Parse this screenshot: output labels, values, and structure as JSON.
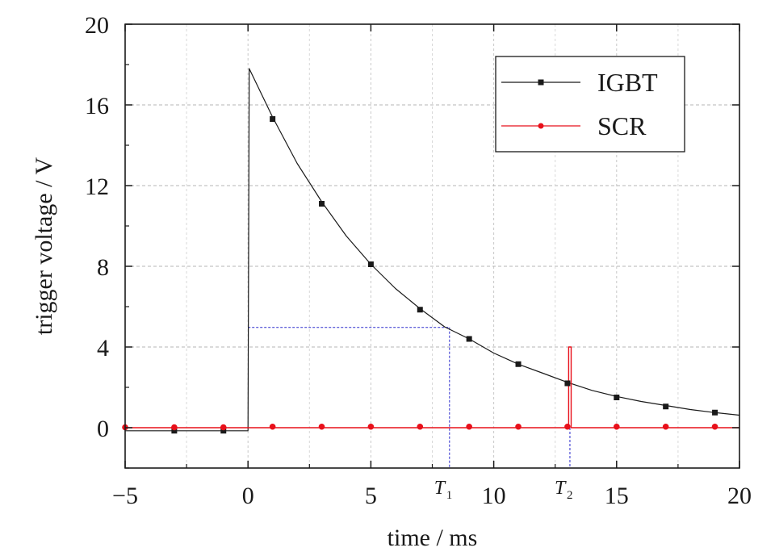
{
  "chart_data": {
    "type": "line",
    "xlabel": "time / ms",
    "ylabel": "trigger voltage / V",
    "xlim": [
      -5,
      20
    ],
    "ylim": [
      -2,
      20
    ],
    "xticks": [
      -5,
      0,
      5,
      10,
      15,
      20
    ],
    "xtick_labels": [
      "−5",
      "0",
      "5",
      "10",
      "15",
      "20"
    ],
    "yticks": [
      0,
      4,
      8,
      12,
      16,
      20
    ],
    "ytick_labels": [
      "0",
      "4",
      "8",
      "12",
      "16",
      "20"
    ],
    "grid": true,
    "legend_position": "top-right",
    "series": [
      {
        "name": "IGBT",
        "color": "#1a1a1a",
        "marker": "square",
        "line_x": [
          -5,
          -0.02,
          0,
          0.05,
          1,
          2,
          3,
          4,
          5,
          6,
          7,
          8,
          9,
          10,
          11,
          12,
          13,
          14,
          15,
          16,
          17,
          18,
          19,
          20
        ],
        "line_y": [
          -0.15,
          -0.15,
          -0.15,
          17.8,
          15.4,
          13.1,
          11.2,
          9.5,
          8.1,
          6.9,
          5.9,
          5.0,
          4.4,
          3.7,
          3.15,
          2.7,
          2.25,
          1.85,
          1.55,
          1.3,
          1.1,
          0.9,
          0.75,
          0.62
        ],
        "marker_x": [
          -3,
          -1,
          1,
          3,
          5,
          7,
          9,
          11,
          13,
          15,
          17,
          19
        ],
        "marker_y": [
          -0.15,
          -0.15,
          15.3,
          11.1,
          8.1,
          5.85,
          4.4,
          3.15,
          2.2,
          1.5,
          1.05,
          0.75
        ]
      },
      {
        "name": "SCR",
        "color": "#e8101a",
        "marker": "circle",
        "line_x": [
          -5,
          13.05,
          13.05,
          13.15,
          13.15,
          20
        ],
        "line_y": [
          0,
          0,
          4.0,
          4.0,
          0,
          0
        ],
        "marker_x": [
          -5,
          -3,
          -1,
          1,
          3,
          5,
          7,
          9,
          11,
          13,
          15,
          17,
          19
        ],
        "marker_y": [
          0.02,
          0.02,
          0.02,
          0.05,
          0.05,
          0.05,
          0.05,
          0.05,
          0.05,
          0.05,
          0.05,
          0.05,
          0.05
        ]
      }
    ],
    "annotations": [
      {
        "label": "T",
        "subscript": "1",
        "x": 8.2,
        "level": 4.97,
        "style": "dashed",
        "color": "#2b2bcc"
      },
      {
        "label": "T",
        "subscript": "2",
        "x": 13.1,
        "style": "dashed",
        "color": "#2b2bcc"
      }
    ]
  }
}
